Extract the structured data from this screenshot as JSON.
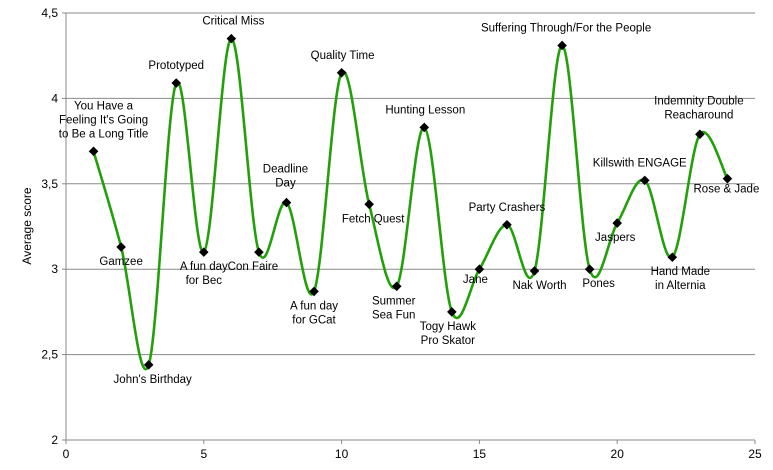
{
  "chart_data": {
    "type": "line",
    "smooth": true,
    "ylabel": "Average score",
    "xlabel": "",
    "xlim": [
      0,
      25
    ],
    "ylim": [
      2,
      4.5
    ],
    "x_ticks": [
      "0",
      "5",
      "10",
      "15",
      "20",
      "25"
    ],
    "y_ticks": [
      "2",
      "2,5",
      "3",
      "3,5",
      "4",
      "4,5"
    ],
    "grid": "horizontal",
    "line_color": "#22a00a",
    "marker_color": "#000000",
    "marker": "diamond",
    "points": [
      {
        "x": 1,
        "y": 3.69,
        "label": [
          "You Have a",
          "Feeling It's Going",
          "to Be a Long Title"
        ]
      },
      {
        "x": 2,
        "y": 3.13,
        "label": [
          "Gamzee"
        ]
      },
      {
        "x": 3,
        "y": 2.44,
        "label": [
          "John's Birthday"
        ]
      },
      {
        "x": 4,
        "y": 4.09,
        "label": [
          "Prototyped"
        ]
      },
      {
        "x": 5,
        "y": 3.1,
        "label": [
          "A fun day",
          "for Bec"
        ]
      },
      {
        "x": 6,
        "y": 4.35,
        "label": [
          "Critical Miss"
        ]
      },
      {
        "x": 7,
        "y": 3.1,
        "label": [
          "Con Faire"
        ]
      },
      {
        "x": 8,
        "y": 3.39,
        "label": [
          "Deadline",
          "Day"
        ]
      },
      {
        "x": 9,
        "y": 2.87,
        "label": [
          "A fun day",
          "for GCat"
        ]
      },
      {
        "x": 10,
        "y": 4.15,
        "label": [
          "Quality Time"
        ]
      },
      {
        "x": 11,
        "y": 3.38,
        "label": [
          "Fetch Quest"
        ]
      },
      {
        "x": 12,
        "y": 2.9,
        "label": [
          "Summer",
          "Sea Fun"
        ]
      },
      {
        "x": 13,
        "y": 3.83,
        "label": [
          "Hunting Lesson"
        ]
      },
      {
        "x": 14,
        "y": 2.75,
        "label": [
          "Togy Hawk",
          "Pro Skator"
        ]
      },
      {
        "x": 15,
        "y": 3.0,
        "label": [
          "Jane"
        ]
      },
      {
        "x": 16,
        "y": 3.26,
        "label": [
          "Party Crashers"
        ]
      },
      {
        "x": 17,
        "y": 2.99,
        "label": [
          "Nak Worth"
        ]
      },
      {
        "x": 18,
        "y": 4.31,
        "label": [
          "Suffering Through/For the People"
        ]
      },
      {
        "x": 19,
        "y": 3.0,
        "label": [
          "Pones"
        ]
      },
      {
        "x": 20,
        "y": 3.27,
        "label": [
          "Jaspers"
        ]
      },
      {
        "x": 21,
        "y": 3.52,
        "label": [
          "Killswith ENGAGE"
        ]
      },
      {
        "x": 22,
        "y": 3.07,
        "label": [
          "Hand Made",
          "in Alternia"
        ]
      },
      {
        "x": 23,
        "y": 3.79,
        "label": [
          "Indemnity Double",
          "Reacharound"
        ]
      },
      {
        "x": 24,
        "y": 3.53,
        "label": [
          "Rose & Jade"
        ]
      }
    ]
  }
}
